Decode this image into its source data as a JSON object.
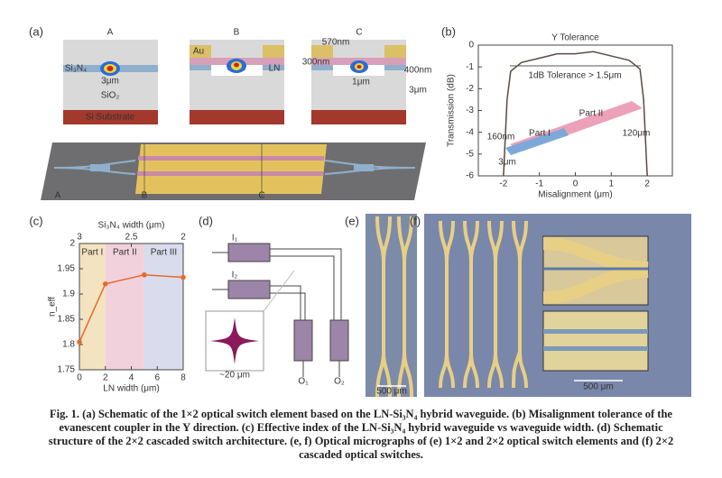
{
  "panel_labels": [
    "(a)",
    "(b)",
    "(c)",
    "(d)",
    "(e)",
    "(f)"
  ],
  "panel_a": {
    "sections": [
      "A",
      "B",
      "C"
    ],
    "labels": {
      "core": "Si₃N₄",
      "core_width": "3μm",
      "cladding": "SiO₂",
      "substrate": "Si Substrate",
      "electrode": "Au",
      "film": "LN",
      "t_electrode": "570nm",
      "t_film": "300nm",
      "t_core": "400nm",
      "gap": "3μm",
      "width": "1μm"
    },
    "device_cuts": [
      "A",
      "B",
      "C"
    ]
  },
  "chart_data": [
    {
      "type": "line",
      "title": "Y Tolerance",
      "x_label": "Misalignment (μm)",
      "y_label": "Transmission (dB)",
      "xlim": [
        -2.7,
        2.7
      ],
      "xticks": [
        -2,
        -1,
        0,
        1,
        2
      ],
      "ylim": [
        -6,
        0
      ],
      "yticks": [
        0,
        -1,
        -2,
        -3,
        -4,
        -5,
        -6
      ],
      "annotations": [
        "1dB Tolerance > 1.5μm",
        "Part I",
        "Part II",
        "160nm",
        "120μm",
        "3μm"
      ],
      "series": [
        {
          "color": "#5a4a44",
          "x": [
            -2,
            -1.9,
            -1.8,
            -1.5,
            -1,
            -0.5,
            0,
            0.5,
            1,
            1.5,
            1.8,
            1.9,
            2
          ],
          "values": [
            -6,
            -2.5,
            -1.2,
            -0.8,
            -0.6,
            -0.4,
            -0.4,
            -0.3,
            -0.5,
            -0.7,
            -1.1,
            -2.5,
            -6
          ]
        }
      ]
    },
    {
      "type": "line",
      "x_label": "LN width (μm)",
      "y_label": "n_eff",
      "x2_label": "Si₃N₄ width (μm)",
      "xlim": [
        0,
        8
      ],
      "xticks": [
        0,
        2,
        4,
        6,
        8
      ],
      "ylim": [
        1.75,
        2
      ],
      "yticks": [
        1.75,
        1.8,
        1.85,
        1.9,
        1.95,
        2
      ],
      "x2lim": [
        3,
        2
      ],
      "x2ticks": [
        3,
        2.5,
        2
      ],
      "regions": [
        {
          "label": "Part I",
          "from": 0,
          "to": 2,
          "color": "#f3e3c0"
        },
        {
          "label": "Part II",
          "from": 2,
          "to": 5,
          "color": "#f1d2dc"
        },
        {
          "label": "Part III",
          "from": 5,
          "to": 8,
          "color": "#d8dcec"
        }
      ],
      "series": [
        {
          "color": "#e86a2a",
          "markers": true,
          "x": [
            0,
            2,
            5,
            8
          ],
          "values": [
            1.805,
            1.92,
            1.938,
            1.933
          ]
        }
      ]
    }
  ],
  "panel_d": {
    "inputs": [
      "I₁",
      "I₂"
    ],
    "outputs": [
      "O₁",
      "O₂"
    ],
    "scale": "~20 μm"
  },
  "panel_e": {
    "scale": "500 μm"
  },
  "panel_f": {
    "scale": "500 μm"
  },
  "caption": "Fig. 1. (a) Schematic of the 1×2 optical switch element based on the LN-Si₃N₄ hybrid waveguide. (b) Misalignment tolerance of the evanescent coupler in the Y direction. (c) Effective index of the LN-Si₃N₄ hybrid waveguide vs waveguide width. (d) Schematic structure of the 2×2 cascaded switch architecture. (e, f) Optical micrographs of (e) 1×2 and 2×2 optical switch elements and (f) 2×2 cascaded optical switches."
}
